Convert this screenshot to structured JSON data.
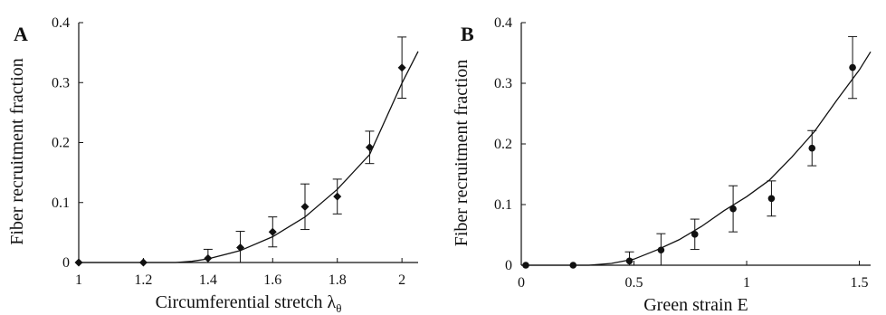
{
  "chart_data": [
    {
      "type": "scatter",
      "panel_label": "A",
      "xlabel": "Circumferential stretch λ",
      "xlabel_sub": "θ",
      "ylabel": "Fiber recruitment fraction",
      "xlim": [
        1,
        2.05
      ],
      "ylim": [
        0,
        0.4
      ],
      "xticks": [
        1,
        1.2,
        1.4,
        1.6,
        1.8,
        2
      ],
      "xtick_labels": [
        "1",
        "1.2",
        "1.4",
        "1.6",
        "1.8",
        "2"
      ],
      "yticks": [
        0,
        0.1,
        0.2,
        0.3,
        0.4
      ],
      "ytick_labels": [
        "0",
        "0.1",
        "0.2",
        "0.3",
        "0.4"
      ],
      "marker": "diamond",
      "points": [
        {
          "x": 1.0,
          "y": 0.0,
          "err": 0
        },
        {
          "x": 1.2,
          "y": 0.0,
          "err": 0
        },
        {
          "x": 1.4,
          "y": 0.007,
          "err": 0.015
        },
        {
          "x": 1.5,
          "y": 0.025,
          "err": 0.027
        },
        {
          "x": 1.6,
          "y": 0.051,
          "err": 0.025
        },
        {
          "x": 1.7,
          "y": 0.093,
          "err": 0.038
        },
        {
          "x": 1.8,
          "y": 0.11,
          "err": 0.029
        },
        {
          "x": 1.9,
          "y": 0.192,
          "err": 0.027
        },
        {
          "x": 2.0,
          "y": 0.325,
          "err": 0.051
        }
      ],
      "fit_curve": [
        [
          1.0,
          0
        ],
        [
          1.3,
          0
        ],
        [
          1.35,
          0.002
        ],
        [
          1.4,
          0.006
        ],
        [
          1.5,
          0.02
        ],
        [
          1.6,
          0.043
        ],
        [
          1.7,
          0.076
        ],
        [
          1.8,
          0.122
        ],
        [
          1.9,
          0.18
        ],
        [
          2.0,
          0.299
        ],
        [
          2.05,
          0.352
        ]
      ]
    },
    {
      "type": "scatter",
      "panel_label": "B",
      "xlabel": "Green strain E",
      "xlabel_sub": "",
      "ylabel": "Fiber recruitment fraction",
      "xlim": [
        0,
        1.55
      ],
      "ylim": [
        0,
        0.4
      ],
      "xticks": [
        0,
        0.5,
        1,
        1.5
      ],
      "xtick_labels": [
        "0",
        "0.5",
        "1",
        "1.5"
      ],
      "yticks": [
        0,
        0.1,
        0.2,
        0.3,
        0.4
      ],
      "ytick_labels": [
        "0",
        "0.1",
        "0.2",
        "0.3",
        "0.4"
      ],
      "marker": "circle",
      "points": [
        {
          "x": 0.02,
          "y": 0.0,
          "err": 0
        },
        {
          "x": 0.23,
          "y": 0.0,
          "err": 0
        },
        {
          "x": 0.48,
          "y": 0.007,
          "err": 0.015
        },
        {
          "x": 0.62,
          "y": 0.025,
          "err": 0.027
        },
        {
          "x": 0.77,
          "y": 0.051,
          "err": 0.025
        },
        {
          "x": 0.94,
          "y": 0.093,
          "err": 0.038
        },
        {
          "x": 1.11,
          "y": 0.11,
          "err": 0.029
        },
        {
          "x": 1.29,
          "y": 0.193,
          "err": 0.029
        },
        {
          "x": 1.47,
          "y": 0.326,
          "err": 0.051
        }
      ],
      "fit_curve": [
        [
          0.0,
          0
        ],
        [
          0.3,
          0
        ],
        [
          0.4,
          0.003
        ],
        [
          0.5,
          0.01
        ],
        [
          0.6,
          0.025
        ],
        [
          0.7,
          0.042
        ],
        [
          0.8,
          0.064
        ],
        [
          0.9,
          0.09
        ],
        [
          1.0,
          0.113
        ],
        [
          1.1,
          0.14
        ],
        [
          1.2,
          0.178
        ],
        [
          1.3,
          0.22
        ],
        [
          1.4,
          0.272
        ],
        [
          1.5,
          0.322
        ],
        [
          1.55,
          0.352
        ]
      ]
    }
  ]
}
